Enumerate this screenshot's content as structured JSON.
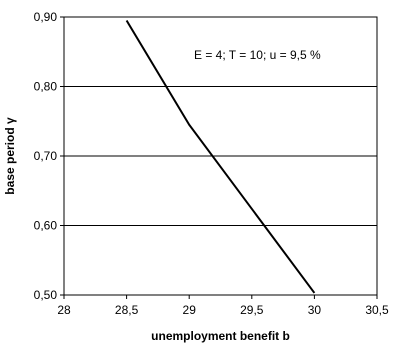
{
  "chart_data": {
    "type": "line",
    "title": "",
    "xlabel": "unemployment benefit b",
    "ylabel": "base period γ",
    "annotation": "E = 4; T = 10; u = 9,5 %",
    "xlim": [
      28,
      30.5
    ],
    "ylim": [
      0.5,
      0.9
    ],
    "x_ticks": [
      "28",
      "28,5",
      "29",
      "29,5",
      "30",
      "30,5"
    ],
    "y_ticks": [
      "0,50",
      "0,60",
      "0,70",
      "0,80",
      "0,90"
    ],
    "grid": "horizontal",
    "series": [
      {
        "x": [
          28.5,
          29.0,
          30.0
        ],
        "y": [
          0.895,
          0.745,
          0.503
        ],
        "color": "#000000"
      }
    ]
  }
}
